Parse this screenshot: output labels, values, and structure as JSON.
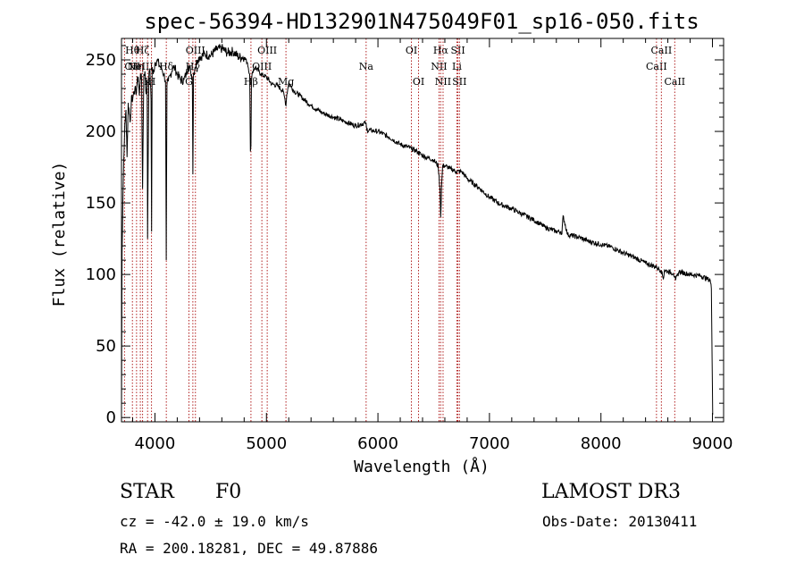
{
  "chart_data": {
    "type": "line",
    "title": "spec-56394-HD132901N475049F01_sp16-050.fits",
    "xlabel": "Wavelength (Å)",
    "ylabel": "Flux (relative)",
    "xlim": [
      3700,
      9100
    ],
    "ylim": [
      -3,
      265
    ],
    "xticks": [
      4000,
      5000,
      6000,
      7000,
      8000,
      9000
    ],
    "yticks": [
      0,
      50,
      100,
      150,
      200,
      250
    ],
    "series": [
      {
        "name": "spectrum",
        "x": [
          3700,
          3705,
          3712,
          3720,
          3730,
          3740,
          3750,
          3760,
          3770,
          3780,
          3790,
          3800,
          3810,
          3820,
          3830,
          3840,
          3850,
          3860,
          3870,
          3880,
          3889,
          3900,
          3910,
          3920,
          3930,
          3934,
          3945,
          3955,
          3965,
          3970,
          3975,
          3985,
          4000,
          4020,
          4040,
          4060,
          4080,
          4095,
          4101,
          4108,
          4120,
          4140,
          4160,
          4180,
          4200,
          4230,
          4260,
          4280,
          4300,
          4320,
          4335,
          4340,
          4346,
          4360,
          4380,
          4400,
          4450,
          4500,
          4550,
          4600,
          4650,
          4700,
          4750,
          4800,
          4830,
          4850,
          4856,
          4861,
          4866,
          4875,
          4900,
          4950,
          5000,
          5050,
          5100,
          5150,
          5167,
          5175,
          5183,
          5200,
          5250,
          5300,
          5400,
          5500,
          5600,
          5700,
          5800,
          5890,
          5900,
          6000,
          6100,
          6200,
          6300,
          6350,
          6400,
          6500,
          6540,
          6556,
          6563,
          6570,
          6580,
          6600,
          6650,
          6700,
          6750,
          6800,
          6900,
          7000,
          7100,
          7200,
          7300,
          7400,
          7500,
          7600,
          7640,
          7650,
          7660,
          7700,
          7800,
          7900,
          8000,
          8100,
          8200,
          8300,
          8400,
          8500,
          8540,
          8560,
          8570,
          8600,
          8650,
          8662,
          8670,
          8700,
          8800,
          8900,
          8950,
          8980,
          8990,
          9000,
          9002
        ],
        "values": [
          2,
          115,
          150,
          180,
          205,
          215,
          182,
          220,
          212,
          208,
          225,
          222,
          228,
          230,
          226,
          234,
          238,
          225,
          240,
          236,
          160,
          240,
          242,
          226,
          236,
          125,
          238,
          244,
          222,
          130,
          245,
          240,
          248,
          250,
          246,
          244,
          240,
          235,
          110,
          232,
          235,
          240,
          245,
          244,
          240,
          236,
          236,
          240,
          246,
          242,
          238,
          170,
          240,
          245,
          250,
          252,
          254,
          253,
          257,
          258,
          255,
          256,
          252,
          252,
          248,
          240,
          186,
          190,
          235,
          242,
          245,
          240,
          238,
          233,
          232,
          228,
          222,
          218,
          226,
          234,
          228,
          225,
          218,
          213,
          210,
          207,
          204,
          206,
          201,
          200,
          196,
          191,
          188,
          186,
          183,
          180,
          176,
          160,
          140,
          160,
          176,
          176,
          174,
          172,
          172,
          167,
          161,
          154,
          149,
          146,
          142,
          138,
          133,
          130,
          130,
          128,
          141,
          128,
          126,
          123,
          121,
          119,
          115,
          112,
          108,
          105,
          103,
          97,
          103,
          102,
          101,
          98,
          96,
          102,
          100,
          99,
          97,
          96,
          90,
          20,
          2
        ]
      }
    ],
    "line_markers": [
      {
        "wl": 3727,
        "labels": [
          "OII"
        ],
        "row": 1,
        "anchor": "start"
      },
      {
        "wl": 3798,
        "labels": [
          "Hθ"
        ],
        "row": 0,
        "anchor": "middle"
      },
      {
        "wl": 3835,
        "labels": [
          "Hη"
        ],
        "row": 1,
        "anchor": "middle"
      },
      {
        "wl": 3869,
        "labels": [
          "NeIII"
        ],
        "row": 1,
        "anchor": "middle"
      },
      {
        "wl": 3889,
        "labels": [
          "Hζ"
        ],
        "row": 0,
        "anchor": "middle"
      },
      {
        "wl": 3934,
        "labels": [
          "K"
        ],
        "row": 2,
        "anchor": "middle"
      },
      {
        "wl": 3969,
        "labels": [
          "H"
        ],
        "row": 2,
        "anchor": "middle"
      },
      {
        "wl": 4102,
        "labels": [
          "Hδ"
        ],
        "row": 1,
        "anchor": "middle"
      },
      {
        "wl": 4305,
        "labels": [
          "G"
        ],
        "row": 2,
        "anchor": "middle"
      },
      {
        "wl": 4340,
        "labels": [
          "Hγ"
        ],
        "row": 1,
        "anchor": "middle"
      },
      {
        "wl": 4363,
        "labels": [
          "OIII"
        ],
        "row": 0,
        "anchor": "middle"
      },
      {
        "wl": 4861,
        "labels": [
          "Hβ"
        ],
        "row": 2,
        "anchor": "middle"
      },
      {
        "wl": 4959,
        "labels": [
          "OIII"
        ],
        "row": 1,
        "anchor": "middle"
      },
      {
        "wl": 5007,
        "labels": [
          "OIII"
        ],
        "row": 0,
        "anchor": "middle"
      },
      {
        "wl": 5175,
        "labels": [
          "Mg"
        ],
        "row": 2,
        "anchor": "middle"
      },
      {
        "wl": 5894,
        "labels": [
          "Na"
        ],
        "row": 1,
        "anchor": "middle"
      },
      {
        "wl": 6300,
        "labels": [
          "OI"
        ],
        "row": 0,
        "anchor": "middle"
      },
      {
        "wl": 6364,
        "labels": [
          "OI"
        ],
        "row": 2,
        "anchor": "middle"
      },
      {
        "wl": 6548,
        "labels": [
          "NII"
        ],
        "row": 1,
        "anchor": "middle"
      },
      {
        "wl": 6563,
        "labels": [
          "Hα"
        ],
        "row": 0,
        "anchor": "middle"
      },
      {
        "wl": 6584,
        "labels": [
          "NII"
        ],
        "row": 2,
        "anchor": "middle"
      },
      {
        "wl": 6708,
        "labels": [
          "Li"
        ],
        "row": 1,
        "anchor": "middle"
      },
      {
        "wl": 6717,
        "labels": [
          "SII"
        ],
        "row": 0,
        "anchor": "middle"
      },
      {
        "wl": 6731,
        "labels": [
          "SII"
        ],
        "row": 2,
        "anchor": "middle"
      },
      {
        "wl": 8498,
        "labels": [
          "CaII"
        ],
        "row": 1,
        "anchor": "middle"
      },
      {
        "wl": 8542,
        "labels": [
          "CaII"
        ],
        "row": 0,
        "anchor": "middle"
      },
      {
        "wl": 8662,
        "labels": [
          "CaII"
        ],
        "row": 2,
        "anchor": "middle"
      }
    ],
    "colors": {
      "spectrum": "#000000",
      "marker": "#b22222",
      "axis": "#000000"
    }
  },
  "info": {
    "class": "STAR",
    "subclass": "F0",
    "survey": "LAMOST DR3",
    "cz": "cz = -42.0 ± 19.0 km/s",
    "obsdate": "Obs-Date: 20130411",
    "radec": "RA = 200.18281, DEC =  49.87886"
  }
}
